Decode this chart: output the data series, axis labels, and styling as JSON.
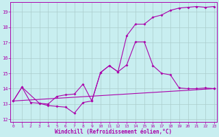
{
  "xlabel": "Windchill (Refroidissement éolien,°C)",
  "bg_color": "#c8eef0",
  "line_color": "#aa00aa",
  "grid_color": "#aacccc",
  "xlim": [
    -0.3,
    23.3
  ],
  "ylim": [
    11.85,
    19.65
  ],
  "yticks": [
    12,
    13,
    14,
    15,
    16,
    17,
    18,
    19
  ],
  "xticks": [
    0,
    1,
    2,
    3,
    4,
    5,
    6,
    7,
    8,
    9,
    10,
    11,
    12,
    13,
    14,
    15,
    16,
    17,
    18,
    19,
    20,
    21,
    22,
    23
  ],
  "line1_x": [
    0,
    1,
    2,
    3,
    4,
    5,
    6,
    7,
    8,
    9,
    10,
    11,
    12,
    13,
    14,
    15,
    16,
    17,
    18,
    19,
    20,
    21,
    22,
    23
  ],
  "line1_y": [
    13.2,
    14.1,
    13.1,
    13.05,
    12.9,
    12.85,
    12.8,
    12.4,
    13.1,
    13.2,
    15.05,
    15.5,
    15.1,
    17.45,
    18.2,
    18.2,
    18.65,
    18.8,
    19.1,
    19.25,
    19.3,
    19.35,
    19.3,
    19.35
  ],
  "line2_x": [
    0,
    1,
    3,
    4,
    5,
    6,
    7,
    8,
    9,
    10,
    11,
    12,
    13,
    14,
    15,
    16,
    17,
    18,
    19,
    20,
    21,
    22,
    23
  ],
  "line2_y": [
    13.2,
    14.1,
    13.05,
    13.0,
    13.5,
    13.6,
    13.65,
    14.3,
    13.2,
    15.05,
    15.5,
    15.1,
    15.55,
    17.05,
    17.05,
    15.5,
    15.0,
    14.9,
    14.05,
    14.0,
    14.0,
    14.05,
    14.0
  ],
  "line3_x": [
    0,
    23
  ],
  "line3_y": [
    13.2,
    14.0
  ]
}
